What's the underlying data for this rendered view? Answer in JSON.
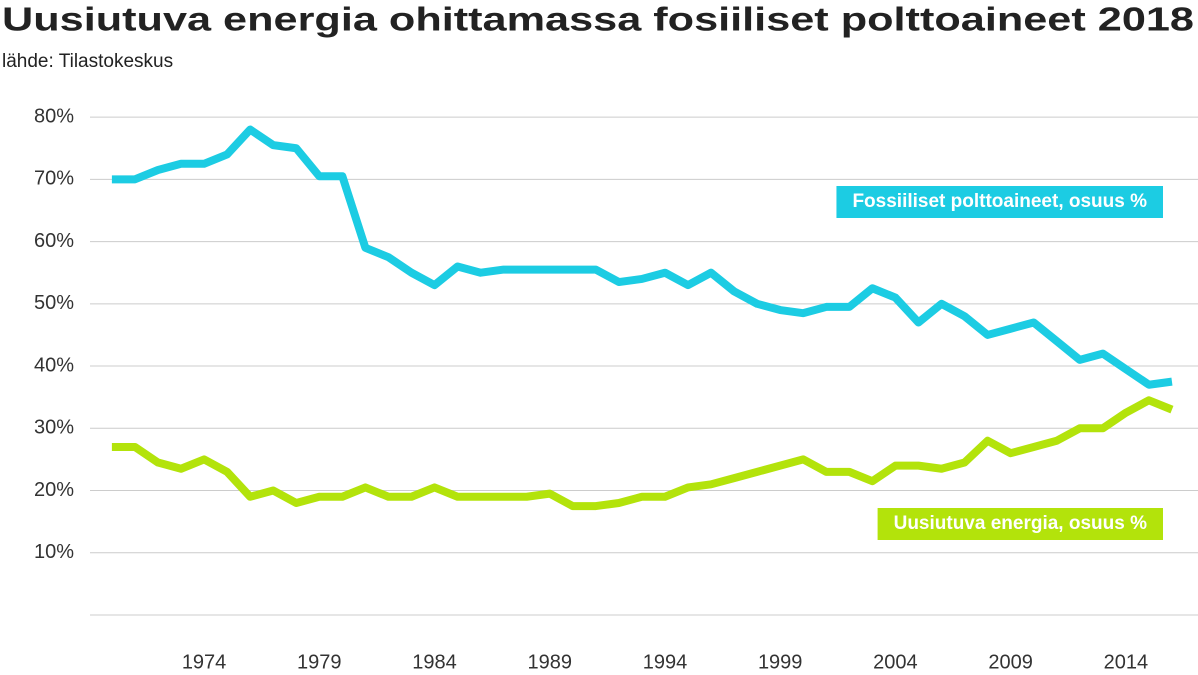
{
  "chart_data": {
    "type": "line",
    "title": "Uusiutuva energia ohittamassa fosiiliset polttoaineet 2018",
    "subtitle": "lähde: Tilastokeskus",
    "x": [
      1970,
      1971,
      1972,
      1973,
      1974,
      1975,
      1976,
      1977,
      1978,
      1979,
      1980,
      1981,
      1982,
      1983,
      1984,
      1985,
      1986,
      1987,
      1988,
      1989,
      1990,
      1991,
      1992,
      1993,
      1994,
      1995,
      1996,
      1997,
      1998,
      1999,
      2000,
      2001,
      2002,
      2003,
      2004,
      2005,
      2006,
      2007,
      2008,
      2009,
      2010,
      2011,
      2012,
      2013,
      2014,
      2015,
      2016
    ],
    "series": [
      {
        "name": "Fossiiliset polttoaineet, osuus %",
        "color": "#1ccce3",
        "values": [
          70,
          70,
          71.5,
          72.5,
          72.5,
          74,
          78,
          75.5,
          75,
          70.5,
          70.5,
          59,
          57.5,
          55,
          53,
          56,
          55,
          55.5,
          55.5,
          55.5,
          55.5,
          55.5,
          53.5,
          54,
          55,
          53,
          55,
          52,
          50,
          49,
          48.5,
          49.5,
          49.5,
          52.5,
          51,
          47,
          50,
          48,
          45,
          46,
          47,
          44,
          41,
          42,
          39.5,
          37,
          37.5
        ]
      },
      {
        "name": "Uusiutuva energia, osuus %",
        "color": "#b3e30b",
        "values": [
          27,
          27,
          24.5,
          23.5,
          25,
          23,
          19,
          20,
          18,
          19,
          19,
          20.5,
          19,
          19,
          20.5,
          19,
          19,
          19,
          19,
          19.5,
          17.5,
          17.5,
          18,
          19,
          19,
          20.5,
          21,
          22,
          23,
          24,
          25,
          23,
          23,
          21.5,
          24,
          24,
          23.5,
          24.5,
          28,
          26,
          27,
          28,
          30,
          30,
          32.5,
          34.5,
          33
        ]
      }
    ],
    "xlim": [
      1969.05,
      2017.13
    ],
    "xticks": [
      1974,
      1979,
      1984,
      1989,
      1994,
      1999,
      2004,
      2009,
      2014
    ],
    "ylim": [
      0,
      85
    ],
    "yticks": [
      {
        "value": 10,
        "label": "10%"
      },
      {
        "value": 20,
        "label": "20%"
      },
      {
        "value": 30,
        "label": "30%"
      },
      {
        "value": 40,
        "label": "40%"
      },
      {
        "value": 50,
        "label": "50%"
      },
      {
        "value": 60,
        "label": "60%"
      },
      {
        "value": 70,
        "label": "70%"
      },
      {
        "value": 80,
        "label": "80%"
      }
    ],
    "grid": true
  }
}
